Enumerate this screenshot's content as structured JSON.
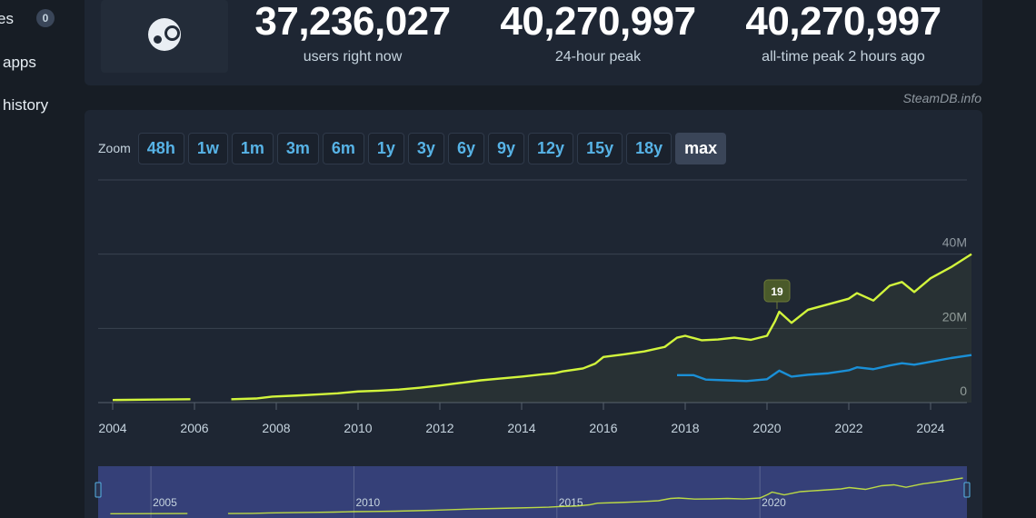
{
  "nav": {
    "items": [
      {
        "label": "es",
        "badge": "0"
      },
      {
        "label": "apps"
      },
      {
        "label": "history"
      }
    ]
  },
  "stats": [
    {
      "value": "37,236,027",
      "label": "users right now"
    },
    {
      "value": "40,270,997",
      "label": "24-hour peak"
    },
    {
      "value": "40,270,997",
      "label": "all-time peak 2 hours ago"
    }
  ],
  "credit": "SteamDB.info",
  "zoom": {
    "label": "Zoom",
    "buttons": [
      "48h",
      "1w",
      "1m",
      "3m",
      "6m",
      "1y",
      "3y",
      "6y",
      "9y",
      "12y",
      "15y",
      "18y",
      "max"
    ],
    "active": "max"
  },
  "colors": {
    "users": "#d2f53c",
    "ingame": "#1a8fd6",
    "accent": "#57b3e6"
  },
  "chart_data": {
    "type": "line",
    "x_ticks": [
      "2004",
      "2006",
      "2008",
      "2010",
      "2012",
      "2014",
      "2016",
      "2018",
      "2020",
      "2022",
      "2024"
    ],
    "y_ticks": [
      "0",
      "20M",
      "40M"
    ],
    "ylim": [
      0,
      60000000
    ],
    "xlim": [
      2003.7,
      2025.1
    ],
    "grid": true,
    "series": [
      {
        "color": "#d2f53c",
        "segments": [
          [
            [
              2004.0,
              0.7
            ],
            [
              2005.0,
              0.8
            ],
            [
              2005.9,
              0.9
            ]
          ],
          [
            [
              2006.9,
              0.9
            ],
            [
              2007.5,
              1.1
            ],
            [
              2007.9,
              1.6
            ],
            [
              2008.5,
              1.9
            ],
            [
              2009.0,
              2.2
            ],
            [
              2009.5,
              2.5
            ],
            [
              2010.0,
              3.0
            ],
            [
              2010.5,
              3.2
            ],
            [
              2011.0,
              3.5
            ],
            [
              2011.5,
              4.0
            ],
            [
              2012.0,
              4.6
            ],
            [
              2012.5,
              5.3
            ],
            [
              2013.0,
              6.0
            ],
            [
              2013.5,
              6.5
            ],
            [
              2014.0,
              7.0
            ],
            [
              2014.5,
              7.6
            ],
            [
              2014.8,
              7.9
            ],
            [
              2015.0,
              8.4
            ],
            [
              2015.5,
              9.2
            ],
            [
              2015.8,
              10.5
            ],
            [
              2016.0,
              12.3
            ],
            [
              2016.5,
              13.0
            ],
            [
              2017.0,
              13.8
            ],
            [
              2017.5,
              15.0
            ],
            [
              2017.8,
              17.5
            ],
            [
              2018.0,
              18.0
            ],
            [
              2018.4,
              16.8
            ],
            [
              2018.8,
              17.0
            ],
            [
              2019.2,
              17.5
            ],
            [
              2019.6,
              16.9
            ],
            [
              2020.0,
              18.0
            ],
            [
              2020.2,
              22.0
            ],
            [
              2020.3,
              24.5
            ],
            [
              2020.6,
              21.5
            ],
            [
              2021.0,
              25.0
            ],
            [
              2021.5,
              26.5
            ],
            [
              2022.0,
              28.0
            ],
            [
              2022.2,
              29.5
            ],
            [
              2022.6,
              27.5
            ],
            [
              2023.0,
              31.5
            ],
            [
              2023.3,
              32.5
            ],
            [
              2023.6,
              29.8
            ],
            [
              2024.0,
              33.5
            ],
            [
              2024.5,
              36.5
            ],
            [
              2025.0,
              40.0
            ]
          ]
        ]
      },
      {
        "color": "#1a8fd6",
        "segments": [
          [
            [
              2017.8,
              7.4
            ],
            [
              2018.2,
              7.4
            ],
            [
              2018.5,
              6.2
            ],
            [
              2019.0,
              6.0
            ],
            [
              2019.5,
              5.8
            ],
            [
              2020.0,
              6.3
            ],
            [
              2020.3,
              8.6
            ],
            [
              2020.6,
              7.0
            ],
            [
              2021.0,
              7.5
            ],
            [
              2021.5,
              7.9
            ],
            [
              2022.0,
              8.7
            ],
            [
              2022.2,
              9.5
            ],
            [
              2022.6,
              9.0
            ],
            [
              2023.0,
              10.0
            ],
            [
              2023.3,
              10.6
            ],
            [
              2023.6,
              10.2
            ],
            [
              2024.0,
              11.0
            ],
            [
              2024.5,
              12.0
            ],
            [
              2025.0,
              12.8
            ]
          ]
        ]
      }
    ],
    "flags": [
      {
        "x": 2020.2,
        "text": "19"
      }
    ],
    "navigator": {
      "ticks": [
        "2005",
        "2010",
        "2015",
        "2020"
      ]
    }
  }
}
